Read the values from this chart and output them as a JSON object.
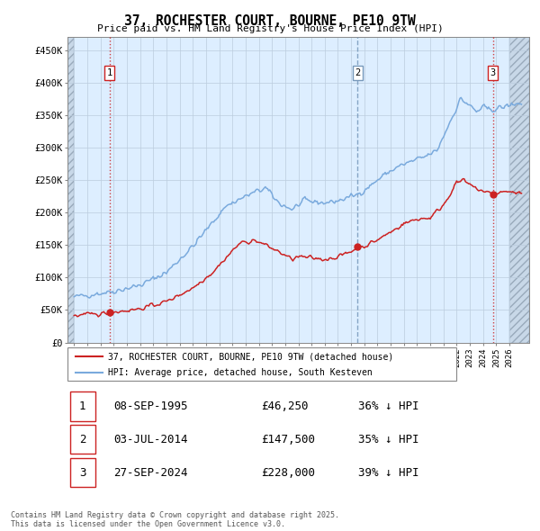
{
  "title": "37, ROCHESTER COURT, BOURNE, PE10 9TW",
  "subtitle": "Price paid vs. HM Land Registry's House Price Index (HPI)",
  "legend_line1": "37, ROCHESTER COURT, BOURNE, PE10 9TW (detached house)",
  "legend_line2": "HPI: Average price, detached house, South Kesteven",
  "sale_year_decimals": [
    1995.69,
    2014.5,
    2024.75
  ],
  "sale_prices": [
    46250,
    147500,
    228000
  ],
  "sale_labels": [
    "1",
    "2",
    "3"
  ],
  "vline_colors": [
    "#cc2222",
    "#7799bb",
    "#cc2222"
  ],
  "vline_styles": [
    ":",
    "--",
    ":"
  ],
  "row_data": [
    [
      "1",
      "08-SEP-1995",
      "£46,250",
      "36% ↓ HPI"
    ],
    [
      "2",
      "03-JUL-2014",
      "£147,500",
      "35% ↓ HPI"
    ],
    [
      "3",
      "27-SEP-2024",
      "£228,000",
      "39% ↓ HPI"
    ]
  ],
  "footer": "Contains HM Land Registry data © Crown copyright and database right 2025.\nThis data is licensed under the Open Government Licence v3.0.",
  "ylim": [
    0,
    470000
  ],
  "yticks": [
    0,
    50000,
    100000,
    150000,
    200000,
    250000,
    300000,
    350000,
    400000,
    450000
  ],
  "ytick_labels": [
    "£0",
    "£50K",
    "£100K",
    "£150K",
    "£200K",
    "£250K",
    "£300K",
    "£350K",
    "£400K",
    "£450K"
  ],
  "hpi_color": "#7aaadd",
  "price_color": "#cc2222",
  "plot_bg_color": "#ddeeff",
  "grid_color": "#bbccdd",
  "hatch_color": "#c8d8e8",
  "label_box_color": "#cc2222",
  "xlim_min": 1992.5,
  "xlim_max": 2027.5
}
